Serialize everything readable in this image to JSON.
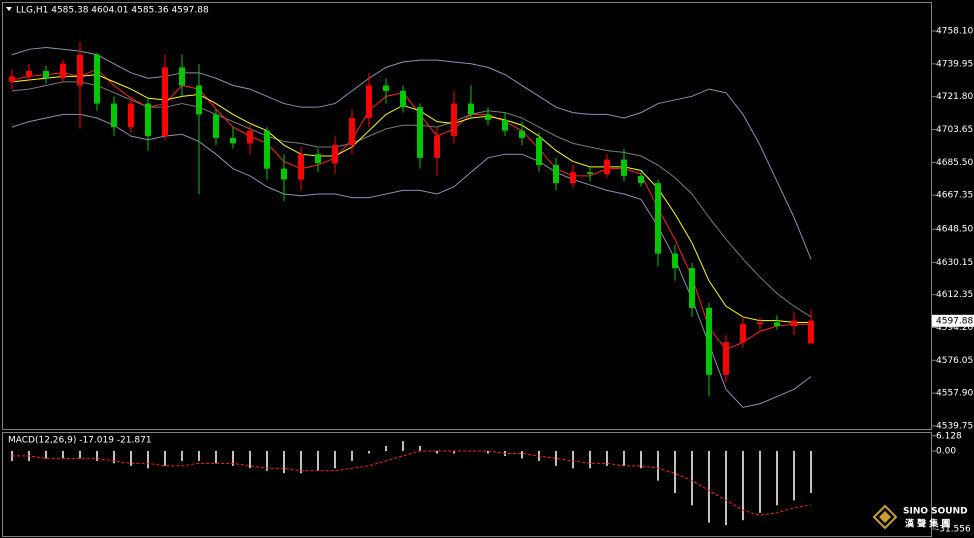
{
  "chart_data": [
    {
      "type": "candlestick",
      "title": "LLG,H1  4585.38 4604.01 4585.36 4597.88",
      "open": [
        4730,
        4733,
        4736,
        4732,
        4728,
        4745,
        4718,
        4705,
        4718,
        4700,
        4738,
        4728,
        4712,
        4699,
        4696,
        4703,
        4682,
        4676,
        4690,
        4685,
        4695,
        4710,
        4728,
        4725,
        4716,
        4688,
        4700,
        4718,
        4712,
        4709,
        4703,
        4699,
        4684,
        4674,
        4680,
        4679,
        4687,
        4678,
        4674,
        4635,
        4627,
        4605,
        4568,
        4586,
        4596,
        4597,
        4595,
        4585.38
      ],
      "high": [
        4737,
        4740,
        4739,
        4742,
        4752,
        4746,
        4722,
        4722,
        4721,
        4745,
        4745,
        4740,
        4715,
        4705,
        4706,
        4705,
        4690,
        4694,
        4693,
        4700,
        4715,
        4735,
        4732,
        4728,
        4718,
        4705,
        4725,
        4728,
        4716,
        4713,
        4708,
        4702,
        4688,
        4684,
        4683,
        4690,
        4693,
        4680,
        4676,
        4640,
        4630,
        4608,
        4590,
        4600,
        4600,
        4601,
        4603,
        4604.01
      ],
      "low": [
        4726,
        4730,
        4729,
        4730,
        4704,
        4714,
        4700,
        4702,
        4692,
        4698,
        4722,
        4668,
        4695,
        4693,
        4690,
        4676,
        4664,
        4670,
        4680,
        4679,
        4690,
        4705,
        4718,
        4713,
        4682,
        4678,
        4696,
        4710,
        4706,
        4700,
        4695,
        4680,
        4670,
        4671,
        4675,
        4677,
        4675,
        4672,
        4628,
        4620,
        4600,
        4556,
        4564,
        4583,
        4592,
        4593,
        4590,
        4585.36
      ],
      "close": [
        4733,
        4736,
        4732,
        4740,
        4745,
        4718,
        4705,
        4718,
        4700,
        4738,
        4728,
        4712,
        4699,
        4696,
        4703,
        4682,
        4676,
        4690,
        4685,
        4695,
        4710,
        4728,
        4725,
        4716,
        4688,
        4700,
        4718,
        4712,
        4709,
        4703,
        4699,
        4684,
        4674,
        4680,
        4679,
        4687,
        4678,
        4674,
        4635,
        4627,
        4605,
        4568,
        4586,
        4596,
        4597,
        4595,
        4598,
        4597.88
      ],
      "up_color": "#ff0000",
      "down_color": "#00c800",
      "lines": [
        {
          "color": "#8a90b4",
          "values": [
            4745,
            4748,
            4749,
            4748,
            4747,
            4745,
            4740,
            4735,
            4732,
            4733,
            4735,
            4735,
            4732,
            4728,
            4726,
            4722,
            4718,
            4716,
            4716,
            4718,
            4725,
            4732,
            4738,
            4741,
            4742,
            4742,
            4741,
            4740,
            4738,
            4734,
            4728,
            4722,
            4716,
            4713,
            4712,
            4712,
            4710,
            4713,
            4718,
            4720,
            4722,
            4726,
            4724,
            4712,
            4695,
            4675,
            4655,
            4632
          ]
        },
        {
          "color": "#7a7a7a",
          "values": [
            4725,
            4726,
            4728,
            4730,
            4730,
            4728,
            4724,
            4720,
            4716,
            4716,
            4718,
            4716,
            4712,
            4708,
            4704,
            4700,
            4697,
            4696,
            4694,
            4694,
            4696,
            4700,
            4704,
            4706,
            4706,
            4705,
            4708,
            4712,
            4714,
            4713,
            4710,
            4705,
            4700,
            4696,
            4694,
            4692,
            4691,
            4689,
            4684,
            4677,
            4668,
            4655,
            4643,
            4632,
            4622,
            4613,
            4606,
            4600
          ]
        },
        {
          "color": "#8a90b4",
          "values": [
            4705,
            4708,
            4710,
            4712,
            4712,
            4710,
            4706,
            4700,
            4698,
            4700,
            4701,
            4697,
            4690,
            4682,
            4678,
            4672,
            4668,
            4667,
            4668,
            4668,
            4666,
            4666,
            4668,
            4670,
            4670,
            4668,
            4672,
            4680,
            4688,
            4690,
            4690,
            4686,
            4680,
            4676,
            4673,
            4670,
            4668,
            4665,
            4650,
            4632,
            4610,
            4585,
            4560,
            4550,
            4552,
            4556,
            4560,
            4567
          ]
        },
        {
          "color": "#ff2020",
          "values": [
            4731,
            4733,
            4734,
            4735,
            4733,
            4737,
            4728,
            4721,
            4716,
            4718,
            4728,
            4726,
            4715,
            4705,
            4700,
            4696,
            4686,
            4682,
            4684,
            4688,
            4698,
            4714,
            4722,
            4724,
            4712,
            4700,
            4704,
            4712,
            4712,
            4708,
            4703,
            4693,
            4682,
            4678,
            4678,
            4682,
            4682,
            4679,
            4660,
            4643,
            4622,
            4594,
            4582,
            4586,
            4592,
            4595,
            4596,
            4596
          ]
        },
        {
          "color": "#ffff00",
          "values": [
            4730,
            4731,
            4732,
            4733,
            4733,
            4734,
            4730,
            4726,
            4721,
            4720,
            4722,
            4723,
            4718,
            4712,
            4707,
            4703,
            4695,
            4690,
            4689,
            4689,
            4694,
            4703,
            4712,
            4717,
            4714,
            4708,
            4707,
            4710,
            4711,
            4709,
            4706,
            4700,
            4692,
            4686,
            4683,
            4683,
            4683,
            4681,
            4671,
            4657,
            4641,
            4620,
            4606,
            4600,
            4598,
            4598,
            4597,
            4597
          ]
        }
      ],
      "ylim": [
        4538.6,
        4772.5
      ],
      "yticks": [
        {
          "value": 4758.1,
          "label": "4758.10"
        },
        4739.95,
        {
          "value": 4721.8,
          "label": "4721.80"
        },
        4703.65,
        {
          "value": 4685.5,
          "label": "4685.50"
        },
        4667.35,
        {
          "value": 4648.5,
          "label": "4648.50"
        },
        4630.15,
        4612.35,
        {
          "value": 4594.2,
          "label": "4594.20"
        },
        4576.05,
        {
          "value": 4557.9,
          "label": "4557.90"
        },
        4539.75
      ],
      "last_price": 4597.88
    },
    {
      "type": "macd",
      "title": "MACD(12,26,9) -17.019 -21.871",
      "histogram": [
        -4,
        -4,
        -3,
        -3,
        -3,
        -4,
        -5,
        -6,
        -7,
        -6,
        -4,
        -4,
        -5,
        -6,
        -7,
        -8,
        -9,
        -9,
        -8,
        -7,
        -4,
        -1,
        2,
        4,
        2,
        -1,
        -1,
        0,
        -1,
        -2,
        -3,
        -4,
        -6,
        -7,
        -7,
        -6,
        -6,
        -7,
        -12,
        -17,
        -22,
        -29,
        -30,
        -28,
        -25,
        -22,
        -20,
        -17.019
      ],
      "signal": [
        -2,
        -2,
        -3,
        -3,
        -3,
        -3,
        -4,
        -5,
        -5,
        -6,
        -6,
        -5,
        -5,
        -5,
        -6,
        -7,
        -7,
        -8,
        -8,
        -8,
        -7,
        -6,
        -4,
        -2,
        0,
        0,
        0,
        0,
        0,
        -1,
        -1,
        -2,
        -3,
        -4,
        -5,
        -5,
        -6,
        -6,
        -7,
        -9,
        -12,
        -16,
        -20,
        -24,
        -26,
        -25,
        -23,
        -21.871
      ],
      "hist_color": "#ffffff",
      "signal_color": "#ff2020",
      "ylim": [
        -34.8,
        7.28
      ],
      "yticks": [
        6.128,
        {
          "value": 0,
          "label": "0.00"
        },
        -31.556
      ]
    }
  ],
  "watermark": {
    "brand": "SINO SOUND",
    "subtitle": "漢 聲 集 團"
  }
}
